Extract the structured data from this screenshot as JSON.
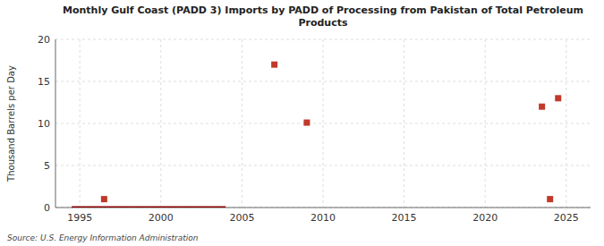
{
  "chart_data": {
    "type": "scatter",
    "title": "Monthly Gulf Coast (PADD 3) Imports by PADD of Processing from Pakistan of Total Petroleum\nProducts",
    "y_label": "Thousand Barrels per Day",
    "annotations": [
      "Source: U.S. Energy Information Administration"
    ],
    "series": [
      {
        "type": "line",
        "color": "#8b0000",
        "x": [
          1994.5,
          2004.0
        ],
        "values": [
          0.0,
          0.0
        ]
      },
      {
        "type": "scatter",
        "color": "#c0392b",
        "marker": "square",
        "x": [
          1996.5,
          2007.0,
          2009.0,
          2023.5,
          2024.5,
          2024.0
        ],
        "values": [
          1.0,
          17.0,
          10.1,
          12.0,
          13.0,
          1.0
        ]
      }
    ],
    "xlim": [
      1993.5,
      2026.5
    ],
    "ylim": [
      0,
      20
    ],
    "xticks": [
      1995,
      2000,
      2005,
      2010,
      2015,
      2020,
      2025
    ],
    "yticks": [
      0,
      5,
      10,
      15,
      20
    ],
    "grid": true
  }
}
